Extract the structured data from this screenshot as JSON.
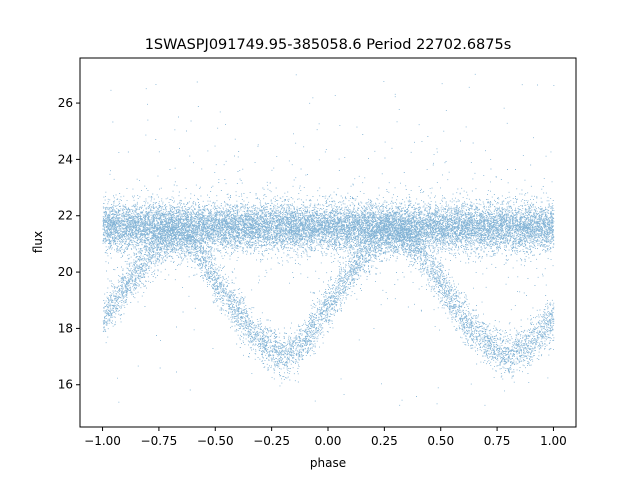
{
  "chart_data": {
    "type": "scatter",
    "title": "1SWASPJ091749.95-385058.6 Period 22702.6875s",
    "xlabel": "phase",
    "ylabel": "flux",
    "xlim": [
      -1.1,
      1.1
    ],
    "ylim": [
      14.5,
      27.6
    ],
    "xticks": [
      -1.0,
      -0.75,
      -0.5,
      -0.25,
      0.0,
      0.25,
      0.5,
      0.75,
      1.0
    ],
    "xtick_labels": [
      "−1.00",
      "−0.75",
      "−0.50",
      "−0.25",
      "0.00",
      "0.25",
      "0.50",
      "0.75",
      "1.00"
    ],
    "yticks": [
      16,
      18,
      20,
      22,
      24,
      26
    ],
    "ytick_labels": [
      "16",
      "18",
      "20",
      "22",
      "24",
      "26"
    ],
    "grid": false,
    "legend": "none",
    "marker_color": "#1f77b4",
    "series": [
      {
        "description_points": "phase-folded light curve, main band",
        "x": [
          -1.0,
          -0.75,
          -0.5,
          -0.25,
          0.0,
          0.25,
          0.5,
          0.75,
          1.0
        ],
        "values": [
          21.6,
          21.6,
          21.6,
          21.6,
          21.6,
          21.6,
          21.6,
          21.6,
          21.6
        ]
      },
      {
        "description_points": "eclipse branch",
        "x": [
          -1.0,
          -0.9,
          -0.8,
          -0.7,
          -0.6,
          -0.5,
          -0.4,
          -0.3,
          -0.2,
          -0.1,
          0.0,
          0.1,
          0.2,
          0.3,
          0.4,
          0.5,
          0.6,
          0.7,
          0.8,
          0.9,
          1.0
        ],
        "values": [
          18.3,
          19.5,
          20.5,
          21.3,
          21.0,
          19.7,
          18.5,
          17.5,
          17.0,
          17.6,
          18.8,
          20.0,
          21.0,
          21.5,
          20.8,
          19.6,
          18.3,
          17.5,
          17.0,
          17.5,
          18.3
        ]
      }
    ]
  }
}
